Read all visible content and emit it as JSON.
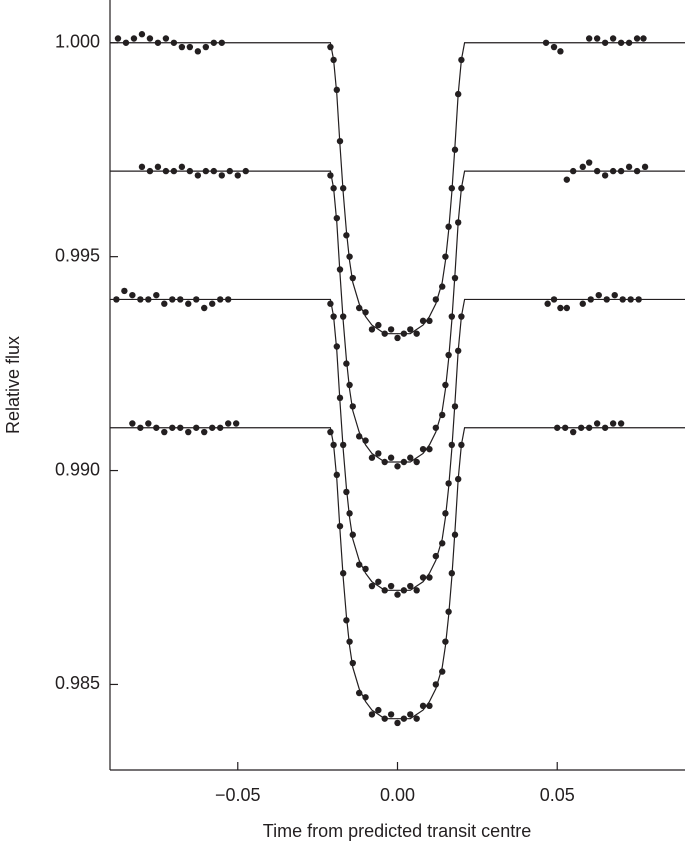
{
  "chart_data": {
    "type": "scatter",
    "xlabel": "Time from predicted transit centre",
    "ylabel": "Relative flux",
    "xlim": [
      -0.09,
      0.09
    ],
    "ylim": [
      0.983,
      1.001
    ],
    "xticks": [
      {
        "value": -0.05,
        "label": "−0.05"
      },
      {
        "value": 0,
        "label": "0.00"
      },
      {
        "value": 0.05,
        "label": "0.05"
      }
    ],
    "yticks": [
      {
        "value": 1.0,
        "label": "1.000"
      },
      {
        "value": 0.995,
        "label": "0.995"
      },
      {
        "value": 0.99,
        "label": "0.990"
      },
      {
        "value": 0.985,
        "label": "0.985"
      }
    ],
    "series": [
      {
        "type": "line",
        "color": "#231f20",
        "x": [
          -0.09,
          -0.021,
          -0.02,
          -0.019,
          -0.018,
          -0.017,
          -0.016,
          -0.015,
          -0.014,
          -0.012,
          -0.01,
          -0.008,
          -0.006,
          -0.004,
          -0.002,
          0,
          0.002,
          0.004,
          0.006,
          0.008,
          0.01,
          0.012,
          0.014,
          0.015,
          0.016,
          0.017,
          0.018,
          0.019,
          0.02,
          0.021,
          0.09
        ],
        "values": [
          1,
          1,
          0.9996,
          0.9988,
          0.9976,
          0.9965,
          0.9956,
          0.9949,
          0.9944,
          0.9939,
          0.9936,
          0.9934,
          0.9933,
          0.9932,
          0.9932,
          0.9932,
          0.9932,
          0.9932,
          0.9933,
          0.9934,
          0.9936,
          0.9939,
          0.9944,
          0.9949,
          0.9956,
          0.9965,
          0.9976,
          0.9988,
          0.9996,
          1,
          1
        ]
      },
      {
        "type": "line",
        "color": "#231f20",
        "x": [
          -0.09,
          -0.021,
          -0.02,
          -0.019,
          -0.018,
          -0.017,
          -0.016,
          -0.015,
          -0.014,
          -0.012,
          -0.01,
          -0.008,
          -0.006,
          -0.004,
          -0.002,
          0,
          0.002,
          0.004,
          0.006,
          0.008,
          0.01,
          0.012,
          0.014,
          0.015,
          0.016,
          0.017,
          0.018,
          0.019,
          0.02,
          0.021,
          0.09
        ],
        "values": [
          0.997,
          0.997,
          0.9966,
          0.9958,
          0.9946,
          0.9935,
          0.9926,
          0.9919,
          0.9914,
          0.9909,
          0.9906,
          0.9904,
          0.9903,
          0.9902,
          0.9902,
          0.9902,
          0.9902,
          0.9902,
          0.9903,
          0.9904,
          0.9906,
          0.9909,
          0.9914,
          0.9919,
          0.9926,
          0.9935,
          0.9946,
          0.9958,
          0.9966,
          0.997,
          0.997
        ]
      },
      {
        "type": "line",
        "color": "#231f20",
        "x": [
          -0.09,
          -0.021,
          -0.02,
          -0.019,
          -0.018,
          -0.017,
          -0.016,
          -0.015,
          -0.014,
          -0.012,
          -0.01,
          -0.008,
          -0.006,
          -0.004,
          -0.002,
          0,
          0.002,
          0.004,
          0.006,
          0.008,
          0.01,
          0.012,
          0.014,
          0.015,
          0.016,
          0.017,
          0.018,
          0.019,
          0.02,
          0.021,
          0.09
        ],
        "values": [
          0.994,
          0.994,
          0.9936,
          0.9928,
          0.9916,
          0.9905,
          0.9896,
          0.9889,
          0.9884,
          0.9879,
          0.9876,
          0.9874,
          0.9873,
          0.9872,
          0.9872,
          0.9872,
          0.9872,
          0.9872,
          0.9873,
          0.9874,
          0.9876,
          0.9879,
          0.9884,
          0.9889,
          0.9896,
          0.9905,
          0.9916,
          0.9928,
          0.9936,
          0.994,
          0.994
        ]
      },
      {
        "type": "line",
        "color": "#231f20",
        "x": [
          -0.09,
          -0.021,
          -0.02,
          -0.019,
          -0.018,
          -0.017,
          -0.016,
          -0.015,
          -0.014,
          -0.012,
          -0.01,
          -0.008,
          -0.006,
          -0.004,
          -0.002,
          0,
          0.002,
          0.004,
          0.006,
          0.008,
          0.01,
          0.012,
          0.014,
          0.015,
          0.016,
          0.017,
          0.018,
          0.019,
          0.02,
          0.021,
          0.09
        ],
        "values": [
          0.991,
          0.991,
          0.9906,
          0.9898,
          0.9886,
          0.9875,
          0.9866,
          0.9859,
          0.9854,
          0.9849,
          0.9846,
          0.9844,
          0.9843,
          0.9842,
          0.9842,
          0.9842,
          0.9842,
          0.9842,
          0.9843,
          0.9844,
          0.9846,
          0.9849,
          0.9854,
          0.9859,
          0.9866,
          0.9875,
          0.9886,
          0.9898,
          0.9906,
          0.991,
          0.991
        ]
      },
      {
        "type": "scatter",
        "color": "#231f20",
        "x": [
          -0.0875,
          -0.085,
          -0.0825,
          -0.08,
          -0.0775,
          -0.075,
          -0.0725,
          -0.07,
          -0.0675,
          -0.065,
          -0.0625,
          -0.06,
          -0.0575,
          -0.055,
          -0.021,
          -0.02,
          -0.019,
          -0.018,
          -0.017,
          -0.016,
          -0.015,
          -0.014,
          -0.012,
          -0.01,
          -0.008,
          -0.006,
          -0.004,
          -0.002,
          0,
          0.002,
          0.004,
          0.006,
          0.008,
          0.01,
          0.012,
          0.014,
          0.015,
          0.016,
          0.017,
          0.018,
          0.019,
          0.02,
          0.0465,
          0.049,
          0.051,
          0.06,
          0.0625,
          0.065,
          0.0675,
          0.07,
          0.0725,
          0.075,
          0.077
        ],
        "values": [
          1.0001,
          1.0,
          1.0001,
          1.0002,
          1.0001,
          1.0,
          1.0001,
          1.0,
          0.9999,
          0.9999,
          0.9998,
          0.9999,
          1.0,
          1.0,
          0.9999,
          0.9996,
          0.9989,
          0.9977,
          0.9966,
          0.9955,
          0.995,
          0.9945,
          0.9938,
          0.9937,
          0.9933,
          0.9934,
          0.9932,
          0.9933,
          0.9931,
          0.9932,
          0.9933,
          0.9932,
          0.9935,
          0.9935,
          0.994,
          0.9943,
          0.995,
          0.9957,
          0.9966,
          0.9975,
          0.9988,
          0.9996,
          1.0,
          0.9999,
          0.9998,
          1.0001,
          1.0001,
          1.0,
          1.0001,
          1.0,
          1.0,
          1.0001,
          1.0001
        ]
      },
      {
        "type": "scatter",
        "color": "#231f20",
        "x": [
          -0.08,
          -0.0775,
          -0.075,
          -0.0725,
          -0.07,
          -0.0675,
          -0.065,
          -0.0625,
          -0.06,
          -0.0575,
          -0.055,
          -0.0525,
          -0.05,
          -0.0475,
          -0.021,
          -0.02,
          -0.019,
          -0.018,
          -0.017,
          -0.016,
          -0.015,
          -0.014,
          -0.012,
          -0.01,
          -0.008,
          -0.006,
          -0.004,
          -0.002,
          0,
          0.002,
          0.004,
          0.006,
          0.008,
          0.01,
          0.012,
          0.014,
          0.015,
          0.016,
          0.017,
          0.018,
          0.019,
          0.02,
          0.053,
          0.055,
          0.058,
          0.06,
          0.0625,
          0.065,
          0.0675,
          0.07,
          0.0725,
          0.075,
          0.0775
        ],
        "values": [
          0.9971,
          0.997,
          0.9971,
          0.997,
          0.997,
          0.9971,
          0.997,
          0.9969,
          0.997,
          0.997,
          0.9969,
          0.997,
          0.9969,
          0.997,
          0.9969,
          0.9966,
          0.9959,
          0.9947,
          0.9936,
          0.9925,
          0.992,
          0.9915,
          0.9908,
          0.9907,
          0.9903,
          0.9904,
          0.9902,
          0.9903,
          0.9901,
          0.9902,
          0.9903,
          0.9902,
          0.9905,
          0.9905,
          0.991,
          0.9913,
          0.992,
          0.9927,
          0.9936,
          0.9945,
          0.9958,
          0.9966,
          0.9968,
          0.997,
          0.9971,
          0.9972,
          0.997,
          0.9969,
          0.997,
          0.997,
          0.9971,
          0.997,
          0.9971
        ]
      },
      {
        "type": "scatter",
        "color": "#231f20",
        "x": [
          -0.088,
          -0.0855,
          -0.083,
          -0.0805,
          -0.078,
          -0.0755,
          -0.073,
          -0.0705,
          -0.068,
          -0.0655,
          -0.063,
          -0.0605,
          -0.058,
          -0.0555,
          -0.053,
          -0.021,
          -0.02,
          -0.019,
          -0.018,
          -0.017,
          -0.016,
          -0.015,
          -0.014,
          -0.012,
          -0.01,
          -0.008,
          -0.006,
          -0.004,
          -0.002,
          0,
          0.002,
          0.004,
          0.006,
          0.008,
          0.01,
          0.012,
          0.014,
          0.015,
          0.016,
          0.017,
          0.018,
          0.019,
          0.02,
          0.047,
          0.049,
          0.051,
          0.053,
          0.058,
          0.0605,
          0.063,
          0.0655,
          0.068,
          0.0705,
          0.073,
          0.0755
        ],
        "values": [
          0.994,
          0.9942,
          0.9941,
          0.994,
          0.994,
          0.9941,
          0.9939,
          0.994,
          0.994,
          0.9939,
          0.994,
          0.9938,
          0.9939,
          0.994,
          0.994,
          0.9939,
          0.9936,
          0.9929,
          0.9917,
          0.9906,
          0.9895,
          0.989,
          0.9885,
          0.9878,
          0.9877,
          0.9873,
          0.9874,
          0.9872,
          0.9873,
          0.9871,
          0.9872,
          0.9873,
          0.9872,
          0.9875,
          0.9875,
          0.988,
          0.9883,
          0.989,
          0.9897,
          0.9906,
          0.9915,
          0.9928,
          0.9936,
          0.9939,
          0.994,
          0.9938,
          0.9938,
          0.9939,
          0.994,
          0.9941,
          0.994,
          0.9941,
          0.994,
          0.994,
          0.994
        ]
      },
      {
        "type": "scatter",
        "color": "#231f20",
        "x": [
          -0.083,
          -0.0805,
          -0.078,
          -0.0755,
          -0.073,
          -0.0705,
          -0.068,
          -0.0655,
          -0.063,
          -0.0605,
          -0.058,
          -0.0555,
          -0.053,
          -0.0505,
          -0.021,
          -0.02,
          -0.019,
          -0.018,
          -0.017,
          -0.016,
          -0.015,
          -0.014,
          -0.012,
          -0.01,
          -0.008,
          -0.006,
          -0.004,
          -0.002,
          0,
          0.002,
          0.004,
          0.006,
          0.008,
          0.01,
          0.012,
          0.014,
          0.015,
          0.016,
          0.017,
          0.018,
          0.019,
          0.02,
          0.05,
          0.0525,
          0.055,
          0.0575,
          0.06,
          0.0625,
          0.065,
          0.0675,
          0.07
        ],
        "values": [
          0.9911,
          0.991,
          0.9911,
          0.991,
          0.9909,
          0.991,
          0.991,
          0.9909,
          0.991,
          0.9909,
          0.991,
          0.991,
          0.9911,
          0.9911,
          0.9909,
          0.9906,
          0.9899,
          0.9887,
          0.9876,
          0.9865,
          0.986,
          0.9855,
          0.9848,
          0.9847,
          0.9843,
          0.9844,
          0.9842,
          0.9843,
          0.9841,
          0.9842,
          0.9843,
          0.9842,
          0.9845,
          0.9845,
          0.985,
          0.9853,
          0.986,
          0.9867,
          0.9876,
          0.9885,
          0.9898,
          0.9906,
          0.991,
          0.991,
          0.9909,
          0.991,
          0.991,
          0.9911,
          0.991,
          0.9911,
          0.9911
        ]
      }
    ]
  }
}
